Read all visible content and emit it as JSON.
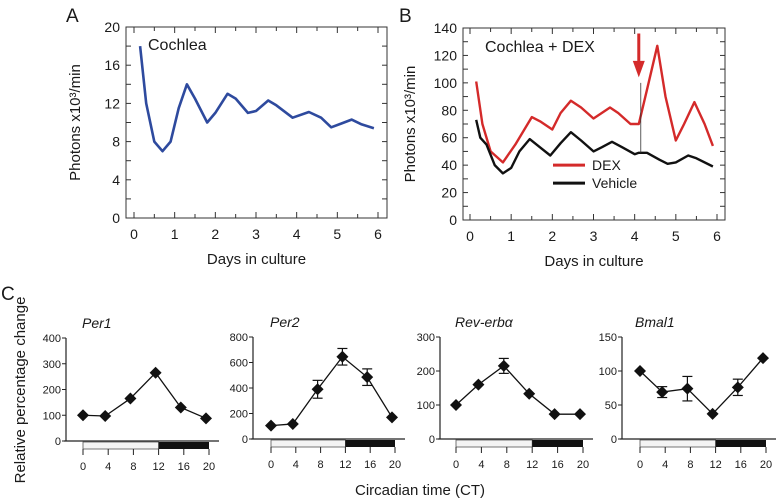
{
  "panel_labels": [
    "A",
    "B",
    "C"
  ],
  "chart_data": [
    {
      "panel": "A",
      "type": "line",
      "annotation": "Cochlea",
      "xlabel": "Days in culture",
      "ylabel": "Photons x10³/min",
      "xlim": [
        0,
        6
      ],
      "ylim": [
        0,
        20
      ],
      "xticks": [
        0,
        1,
        2,
        3,
        4,
        5,
        6
      ],
      "yticks": [
        0,
        4,
        8,
        12,
        16,
        20
      ],
      "grid": false,
      "series": [
        {
          "color": "#2e4a9e",
          "x": [
            0.15,
            0.3,
            0.5,
            0.7,
            0.9,
            1.1,
            1.3,
            1.5,
            1.8,
            2.0,
            2.3,
            2.5,
            2.8,
            3.0,
            3.3,
            3.5,
            3.9,
            4.3,
            4.6,
            4.85,
            5.1,
            5.35,
            5.6,
            5.9
          ],
          "y": [
            18,
            12,
            8,
            7,
            8,
            11.5,
            14,
            12.5,
            10,
            11,
            13,
            12.5,
            11,
            11.2,
            12.3,
            11.8,
            10.5,
            11.1,
            10.5,
            9.5,
            9.9,
            10.3,
            9.8,
            9.4
          ]
        }
      ]
    },
    {
      "panel": "B",
      "type": "line",
      "annotation": "Cochlea + DEX",
      "xlabel": "Days in culture",
      "ylabel": "Photons x10³/min",
      "xlim": [
        0,
        6
      ],
      "ylim": [
        0,
        140
      ],
      "xticks": [
        0,
        1,
        2,
        3,
        4,
        5,
        6
      ],
      "yticks": [
        0,
        20,
        40,
        60,
        80,
        100,
        120,
        140
      ],
      "grid": false,
      "legend": "bottom-center",
      "arrow": {
        "x": 4.1,
        "color": "#d42a2a"
      },
      "series": [
        {
          "name": "DEX",
          "color": "#d42a2a",
          "x": [
            0.15,
            0.3,
            0.5,
            0.8,
            1.1,
            1.5,
            1.7,
            2.0,
            2.2,
            2.45,
            2.7,
            3.0,
            3.4,
            3.6,
            3.9,
            4.1,
            4.3,
            4.55,
            4.75,
            5.0,
            5.2,
            5.45,
            5.7,
            5.9
          ],
          "y": [
            101,
            70,
            50,
            42,
            55,
            75,
            72,
            66,
            78,
            87,
            82,
            74,
            82,
            78,
            70,
            70,
            95,
            127,
            90,
            58,
            70,
            86,
            70,
            54
          ]
        },
        {
          "name": "Vehicle",
          "color": "#111111",
          "x": [
            0.15,
            0.25,
            0.4,
            0.6,
            0.8,
            1.0,
            1.2,
            1.45,
            1.7,
            1.95,
            2.2,
            2.45,
            2.7,
            3.0,
            3.2,
            3.45,
            3.7,
            4.0,
            4.1,
            4.3,
            4.6,
            4.8,
            5.0,
            5.3,
            5.5,
            5.9
          ],
          "y": [
            73,
            60,
            55,
            40,
            34,
            38,
            50,
            59,
            53,
            47,
            56,
            64,
            58,
            50,
            53,
            57,
            53,
            48,
            49,
            49,
            44,
            41,
            42,
            47,
            45,
            39
          ]
        }
      ]
    },
    {
      "panel": "C",
      "type": "line",
      "title": "Per1",
      "ylabel": "Relative percentage change",
      "xlabel": "Circadian time (CT)",
      "ylim": [
        0,
        400
      ],
      "yticks": [
        0,
        100,
        200,
        300,
        400
      ],
      "xticks": [
        0,
        4,
        8,
        12,
        16,
        20
      ],
      "light_dark": {
        "light": [
          0,
          12
        ],
        "dark": [
          12,
          20
        ]
      },
      "x": [
        0,
        4,
        8,
        12,
        16,
        20
      ],
      "y": [
        100,
        97,
        165,
        265,
        130,
        88
      ],
      "error": [
        0,
        0,
        0,
        0,
        0,
        0
      ]
    },
    {
      "panel": "C",
      "type": "line",
      "title": "Per2",
      "ylim": [
        0,
        800
      ],
      "yticks": [
        0,
        200,
        400,
        600,
        800
      ],
      "xticks": [
        0,
        4,
        8,
        12,
        16,
        20
      ],
      "light_dark": {
        "light": [
          0,
          12
        ],
        "dark": [
          12,
          20
        ]
      },
      "x": [
        0,
        4,
        8,
        12,
        16,
        20
      ],
      "y": [
        105,
        118,
        390,
        645,
        485,
        170
      ],
      "error": [
        0,
        0,
        70,
        65,
        65,
        0
      ]
    },
    {
      "panel": "C",
      "type": "line",
      "title": "Rev-erbα",
      "ylim": [
        0,
        300
      ],
      "yticks": [
        0,
        100,
        200,
        300
      ],
      "xticks": [
        0,
        4,
        8,
        12,
        16,
        20
      ],
      "light_dark": {
        "light": [
          0,
          12
        ],
        "dark": [
          12,
          20
        ]
      },
      "x": [
        0,
        4,
        8,
        12,
        16,
        20
      ],
      "y": [
        100,
        160,
        215,
        133,
        73,
        73
      ],
      "error": [
        0,
        0,
        22,
        0,
        0,
        0
      ]
    },
    {
      "panel": "C",
      "type": "line",
      "title": "Bmal1",
      "ylim": [
        0,
        150
      ],
      "yticks": [
        0,
        50,
        100,
        150
      ],
      "xticks": [
        0,
        4,
        8,
        12,
        16,
        20
      ],
      "light_dark": {
        "light": [
          0,
          12
        ],
        "dark": [
          12,
          20
        ]
      },
      "x": [
        0,
        4,
        8,
        12,
        16,
        20
      ],
      "y": [
        100,
        69,
        74,
        37,
        76,
        119
      ],
      "error": [
        0,
        8,
        18,
        0,
        12,
        0
      ]
    }
  ]
}
